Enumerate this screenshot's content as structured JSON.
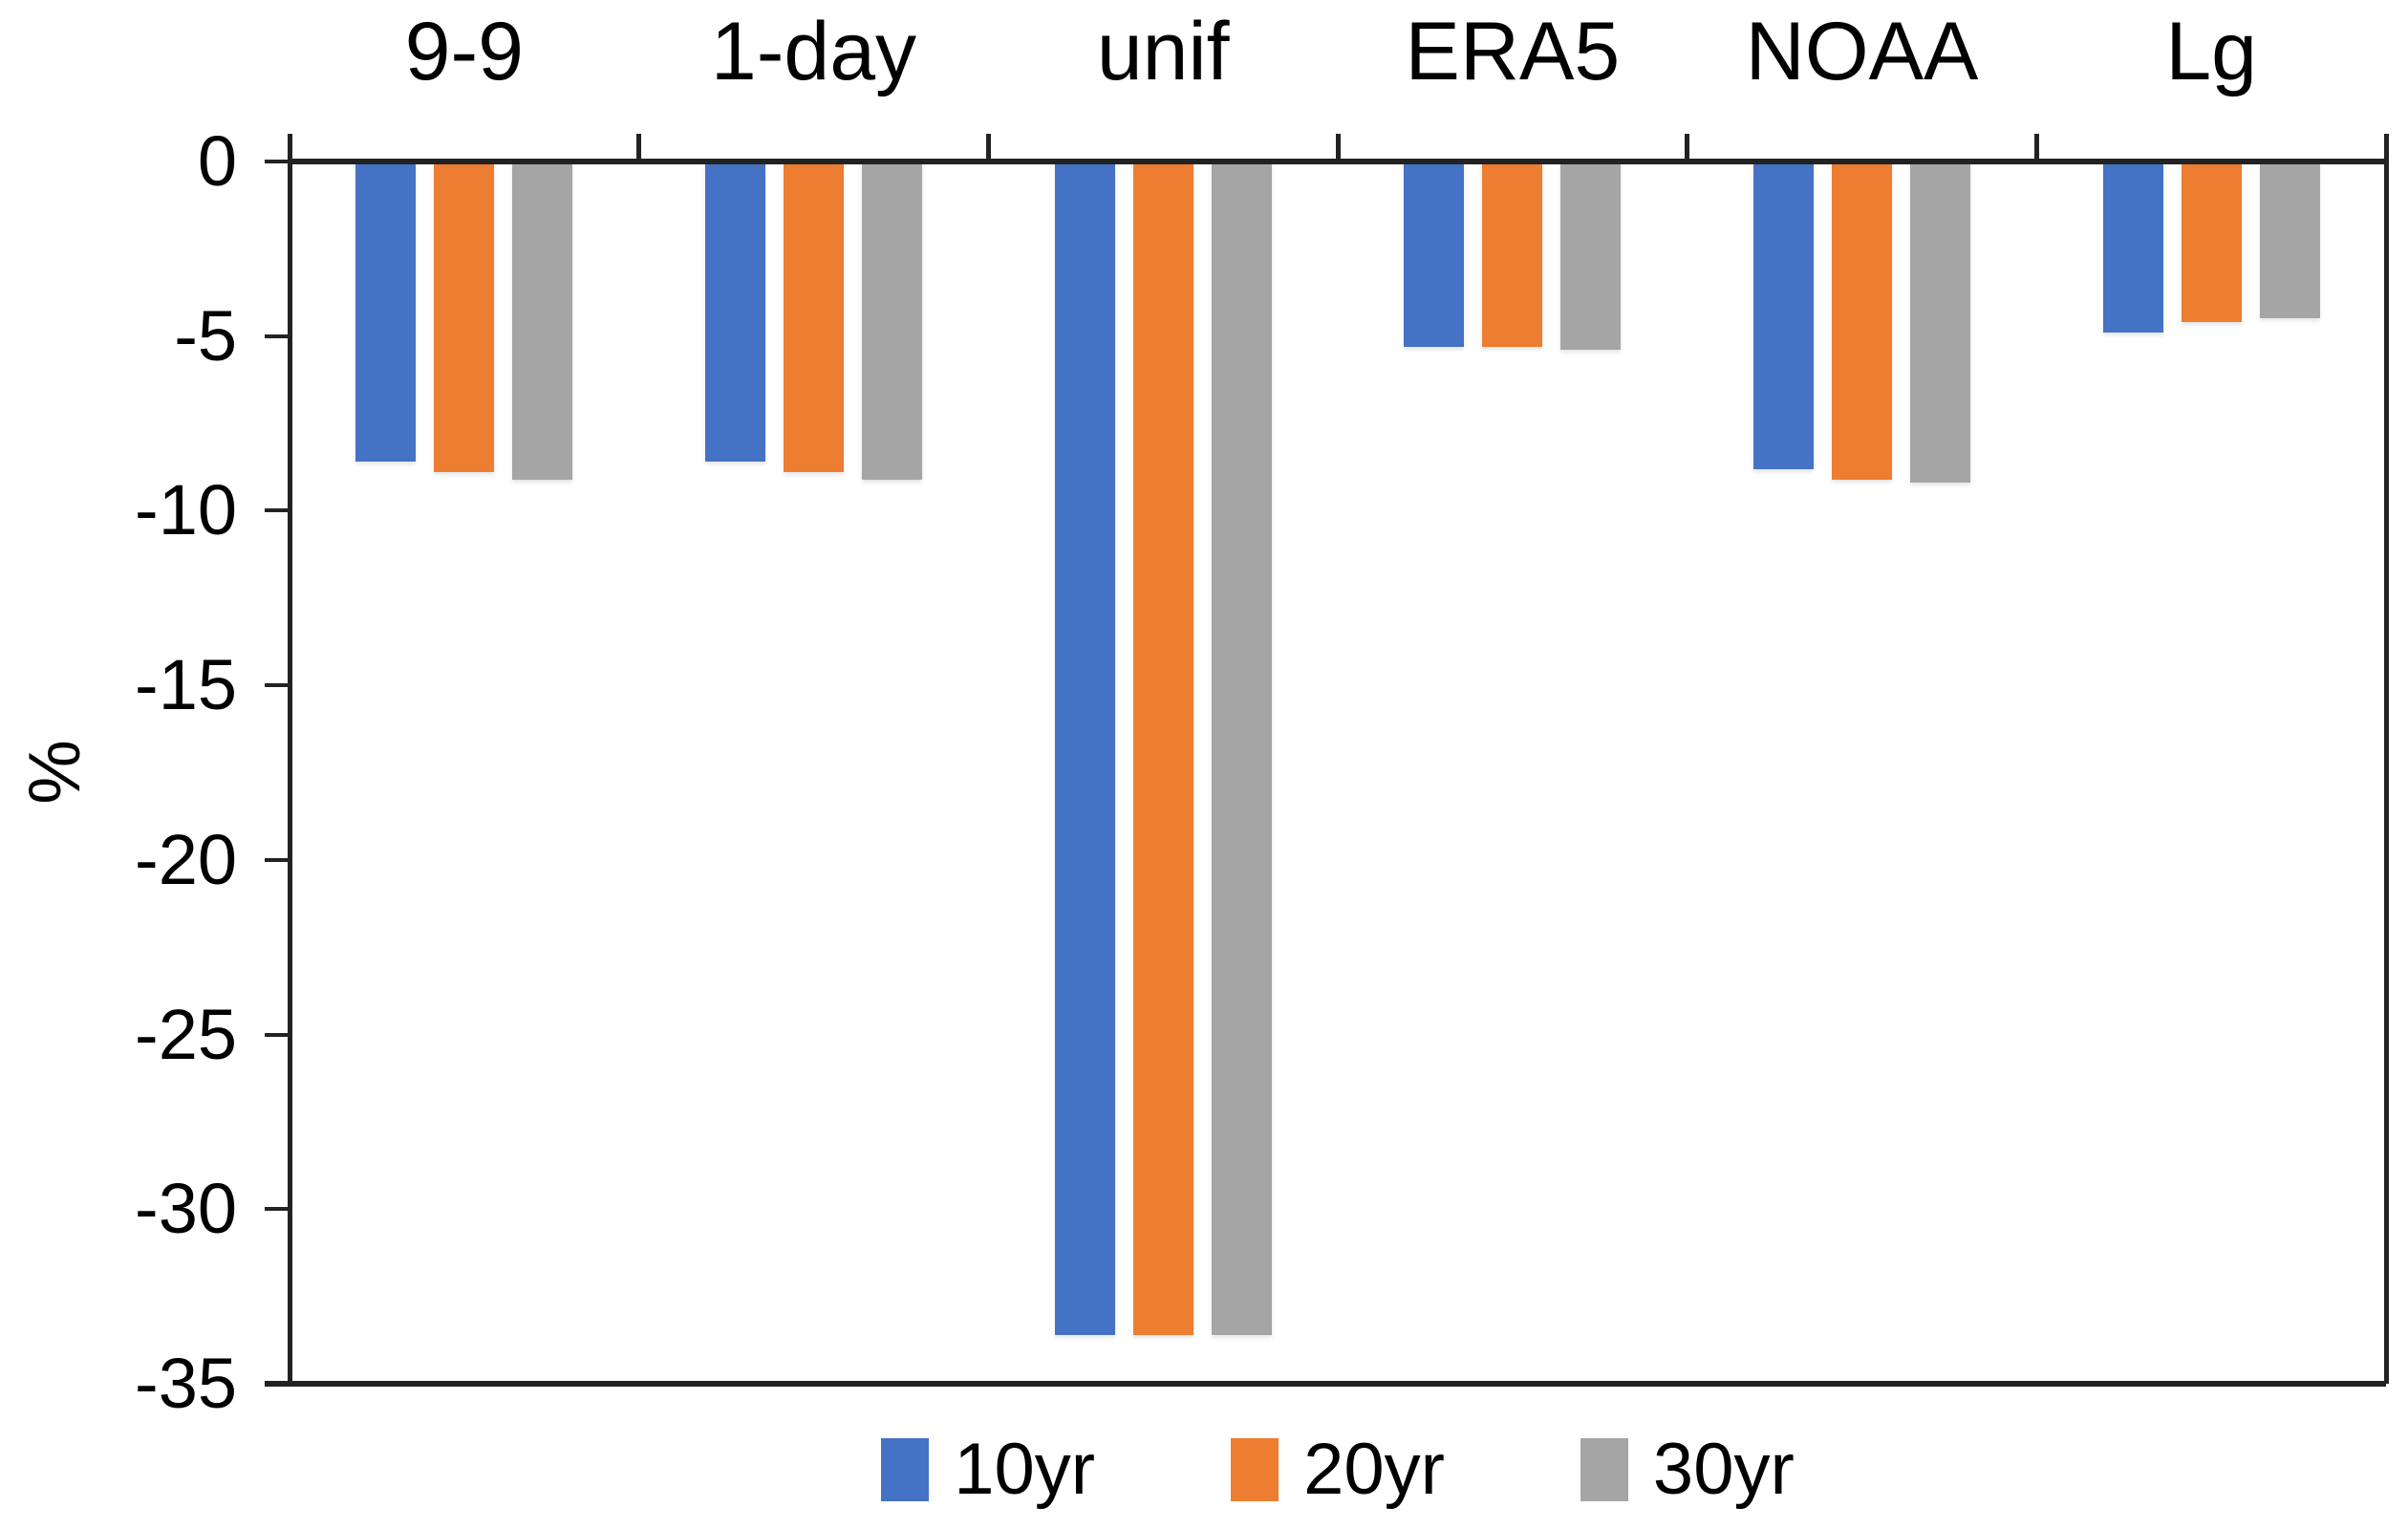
{
  "chart_data": {
    "type": "bar",
    "title": "",
    "ylabel": "%",
    "xlabel": "",
    "categories": [
      "9-9",
      "1-day",
      "unif",
      "ERA5",
      "NOAA",
      "Lg"
    ],
    "series": [
      {
        "name": "10yr",
        "color": "#4472C4",
        "values": [
          -8.6,
          -8.6,
          -33.6,
          -5.3,
          -8.8,
          -4.9
        ]
      },
      {
        "name": "20yr",
        "color": "#ED7D31",
        "values": [
          -8.9,
          -8.9,
          -33.6,
          -5.3,
          -9.1,
          -4.6
        ]
      },
      {
        "name": "30yr",
        "color": "#A5A5A5",
        "values": [
          -9.1,
          -9.1,
          -33.6,
          -5.4,
          -9.2,
          -4.5
        ]
      }
    ],
    "ylim": [
      -35,
      0
    ],
    "ytick_interval": 5,
    "ytick_labels": [
      "0",
      "-5",
      "-10",
      "-15",
      "-20",
      "-25",
      "-30",
      "-35"
    ],
    "grid": false,
    "legend_position": "bottom",
    "category_label_position": "top",
    "axis_color": "#222222",
    "text_color": "#000000",
    "background_color": "#FFFFFF"
  }
}
